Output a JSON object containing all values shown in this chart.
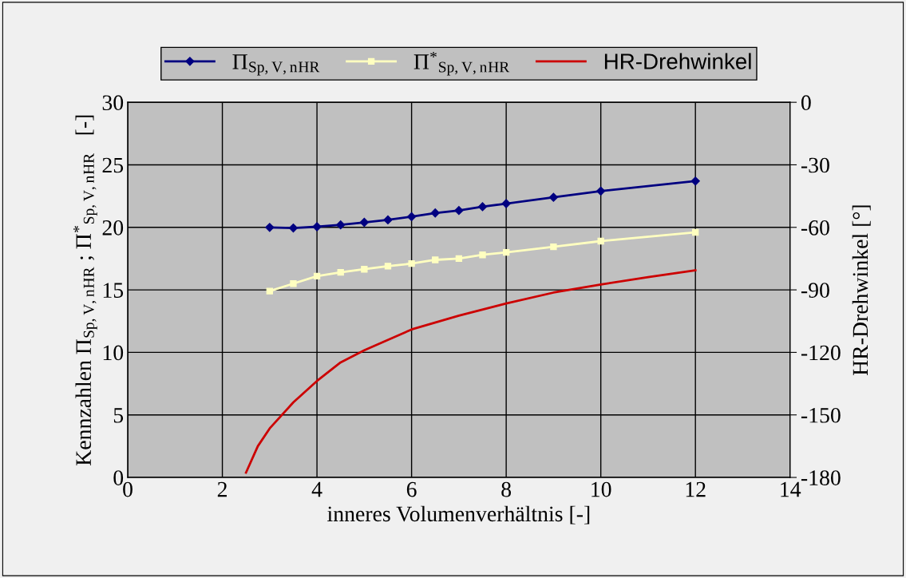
{
  "chart_data": {
    "type": "line",
    "xlabel": "inneres Volumenverhältnis [-]",
    "ylabel": "Kennzahlen Π$_{Sp,V,n}$$_{HR}$ ; Π$^{*}$$_{Sp,V,n}$$_{HR}$   [-]",
    "y2label": "HR-Drehwinkel [°]",
    "series": [
      {
        "name": "Π$_{Sp,V,n}$$_{HR}$",
        "color": "#000080",
        "marker": "diamond",
        "x": [
          3,
          3.5,
          4,
          4.5,
          5,
          5.5,
          6,
          6.5,
          7,
          7.5,
          8,
          9,
          10,
          12
        ],
        "values": [
          20.0,
          19.95,
          20.05,
          20.2,
          20.4,
          20.6,
          20.85,
          21.15,
          21.35,
          21.65,
          21.9,
          22.4,
          22.9,
          23.7
        ]
      },
      {
        "name": "Π$^{*}$$_{Sp,V,n}$$_{HR}$",
        "color": "#ffffc0",
        "marker": "square",
        "x": [
          3,
          3.5,
          4,
          4.5,
          5,
          5.5,
          6,
          6.5,
          7,
          7.5,
          8,
          9,
          10,
          12
        ],
        "values": [
          14.9,
          15.5,
          16.1,
          16.4,
          16.65,
          16.9,
          17.1,
          17.4,
          17.5,
          17.8,
          18.0,
          18.45,
          18.9,
          19.6
        ]
      },
      {
        "name": "HR-Drehwinkel",
        "color": "#cc0000",
        "marker": "none",
        "axis": "y2",
        "x": [
          2.5,
          2.75,
          3,
          3.5,
          4,
          4.5,
          5,
          5.5,
          6,
          7,
          8,
          9,
          10,
          11,
          12
        ],
        "values": [
          -177.7,
          -165,
          -156.5,
          -144,
          -133.7,
          -124.8,
          -119,
          -114,
          -109,
          -102.4,
          -96.5,
          -91.3,
          -87.4,
          -83.9,
          -80.6
        ]
      }
    ],
    "xlim": [
      0,
      14
    ],
    "xticks": [
      0,
      2,
      4,
      6,
      8,
      10,
      12,
      14
    ],
    "ylim": [
      0,
      30
    ],
    "yticks": [
      0,
      5,
      10,
      15,
      20,
      25,
      30
    ],
    "y2lim": [
      -180,
      0
    ],
    "y2ticks": [
      -180,
      -150,
      -120,
      -90,
      -60,
      -30,
      0
    ],
    "grid": true,
    "legend": "top"
  }
}
